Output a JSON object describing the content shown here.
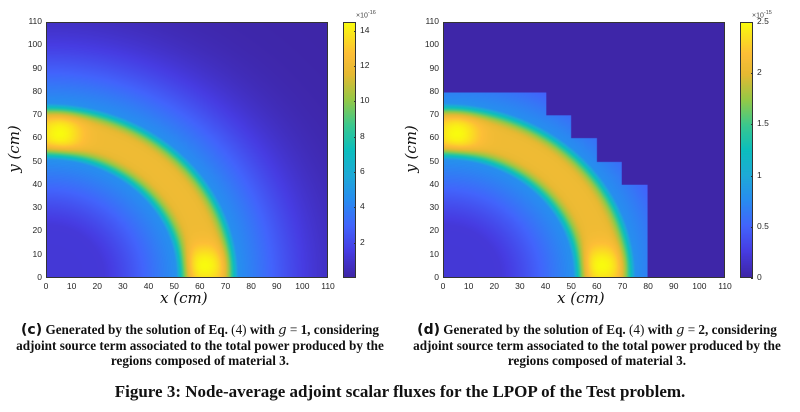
{
  "figure": {
    "caption": "Figure 3: Node-average adjoint scalar fluxes for the LPOP of the Test problem."
  },
  "chart_data": [
    {
      "type": "heatmap",
      "panel": "c",
      "caption": "(c) Generated by the solution of Eq. (4) with g = 1, considering adjoint source term associated to the total power produced by the regions composed of material 3.",
      "caption_parts": {
        "label": "(c)",
        "text_before_g": "Generated by the solution of Eq.",
        "eq_ref": "(4)",
        "with": "with",
        "g_symbol": "g",
        "equals": "=",
        "g_value": "1",
        "text_after_g": ", considering adjoint source term associated to the total power produced by the regions composed of material 3."
      },
      "xlabel": "x (cm)",
      "ylabel": "y (cm)",
      "xlim": [
        0,
        110
      ],
      "ylim": [
        0,
        110
      ],
      "xticks": [
        "0",
        "10",
        "20",
        "30",
        "40",
        "50",
        "60",
        "70",
        "80",
        "90",
        "100",
        "110"
      ],
      "yticks": [
        "0",
        "10",
        "20",
        "30",
        "40",
        "50",
        "60",
        "70",
        "80",
        "90",
        "100",
        "110"
      ],
      "colormap": "parula",
      "colorbar": {
        "exponent_label": "×10",
        "exponent": "-16",
        "range": [
          0,
          14.5
        ],
        "ticks": [
          "2",
          "4",
          "6",
          "8",
          "10",
          "12",
          "14"
        ],
        "tick_values": [
          2,
          4,
          6,
          8,
          10,
          12,
          14
        ]
      },
      "field": {
        "description": "Quarter-annulus band centered at origin with inner radius ~50 cm and outer radius ~75 cm; peak values near (x≈5, y≈62) and (x≈62, y≈5); smooth decay outside band",
        "band_inner_radius_cm": 50,
        "band_outer_radius_cm": 76,
        "peak_value": 14.5,
        "band_value": 12,
        "hotspots": [
          [
            5,
            62
          ],
          [
            62,
            5
          ]
        ],
        "outer_cutoff": false
      }
    },
    {
      "type": "heatmap",
      "panel": "d",
      "caption": "(d) Generated by the solution of Eq. (4) with g = 2, considering adjoint source term associated to the total power produced by the regions composed of material 3.",
      "caption_parts": {
        "label": "(d)",
        "text_before_g": "Generated by the solution of Eq.",
        "eq_ref": "(4)",
        "with": "with",
        "g_symbol": "g",
        "equals": "=",
        "g_value": "2",
        "text_after_g": ", considering adjoint source term associated to the total power produced by the regions composed of material 3."
      },
      "xlabel": "x (cm)",
      "ylabel": "y (cm)",
      "xlim": [
        0,
        110
      ],
      "ylim": [
        0,
        110
      ],
      "xticks": [
        "0",
        "10",
        "20",
        "30",
        "40",
        "50",
        "60",
        "70",
        "80",
        "90",
        "100",
        "110"
      ],
      "yticks": [
        "0",
        "10",
        "20",
        "30",
        "40",
        "50",
        "60",
        "70",
        "80",
        "90",
        "100",
        "110"
      ],
      "colormap": "parula",
      "colorbar": {
        "exponent_label": "×10",
        "exponent": "-15",
        "range": [
          0,
          2.5
        ],
        "ticks": [
          "0",
          "0.5",
          "1",
          "1.5",
          "2",
          "2.5"
        ],
        "tick_values": [
          0,
          0.5,
          1,
          1.5,
          2,
          2.5
        ]
      },
      "field": {
        "description": "Same quarter-annulus band as (c), but values drop to zero beyond a staircase boundary (outer edge at y=80 for x<40, stepping down by 10 cm per 10 cm in x, reaching x=80 at y<40)",
        "band_inner_radius_cm": 50,
        "band_outer_radius_cm": 76,
        "peak_value": 2.5,
        "band_value": 2.1,
        "hotspots": [
          [
            5,
            62
          ],
          [
            62,
            5
          ]
        ],
        "outer_cutoff": true,
        "staircase_boundary": [
          [
            0,
            80
          ],
          [
            40,
            80
          ],
          [
            40,
            70
          ],
          [
            50,
            70
          ],
          [
            50,
            60
          ],
          [
            60,
            60
          ],
          [
            60,
            50
          ],
          [
            70,
            50
          ],
          [
            70,
            40
          ],
          [
            80,
            40
          ],
          [
            80,
            0
          ]
        ]
      }
    }
  ]
}
